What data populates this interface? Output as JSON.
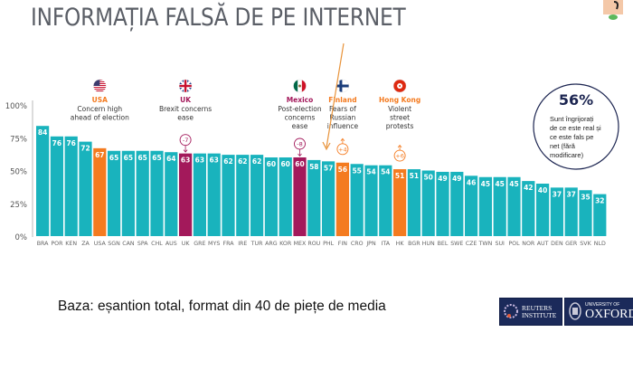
{
  "slide": {
    "title": "INFORMAȚIA FALSĂ DE PE INTERNET",
    "base_note": "Baza: eșantion total, format din 40 de piețe de media",
    "logos": {
      "reuters": {
        "line1": "REUTERS",
        "line2": "INSTITUTE"
      },
      "oxford": {
        "line1": "UNIVERSITY OF",
        "line2": "OXFORD"
      }
    }
  },
  "colors": {
    "bar_default": "#19b3bd",
    "bar_highlight_orange": "#f47b20",
    "bar_highlight_purple": "#a3195b",
    "axis_text": "#555555",
    "title_text": "#5a5e66",
    "pointer_arrow": "#e8933a"
  },
  "chart_data": {
    "type": "bar",
    "title": "",
    "xlabel": "",
    "ylabel": "",
    "ylim": [
      0,
      100
    ],
    "yticks": [
      "0%",
      "25%",
      "50%",
      "75%",
      "100%"
    ],
    "ytick_values": [
      0,
      25,
      50,
      75,
      100
    ],
    "grid": false,
    "categories": [
      "BRA",
      "POR",
      "KEN",
      "ZA",
      "USA",
      "SGN",
      "CAN",
      "SPA",
      "CHL",
      "AUS",
      "UK",
      "GRE",
      "MYS",
      "FRA",
      "IRE",
      "TUR",
      "ARG",
      "KOR",
      "MEX",
      "ROU",
      "PHL",
      "FIN",
      "CRO",
      "JPN",
      "ITA",
      "HK",
      "BGR",
      "HUN",
      "BEL",
      "SWE",
      "CZE",
      "TWN",
      "SUI",
      "POL",
      "NOR",
      "AUT",
      "DEN",
      "GER",
      "SVK",
      "NLD"
    ],
    "values": [
      84,
      76,
      76,
      72,
      67,
      65,
      65,
      65,
      65,
      64,
      63,
      63,
      63,
      62,
      62,
      62,
      60,
      60,
      60,
      58,
      57,
      56,
      55,
      54,
      54,
      51,
      51,
      50,
      49,
      49,
      46,
      45,
      45,
      45,
      42,
      40,
      37,
      37,
      35,
      32
    ],
    "highlights": {
      "USA": "orange",
      "UK": "purple",
      "MEX": "purple",
      "FIN": "orange",
      "HK": "orange"
    },
    "annotations": [
      {
        "category": "USA",
        "country": "USA",
        "note": [
          "Concern high",
          "ahead of election"
        ],
        "flag": "us-flag",
        "color": "orange",
        "change": null
      },
      {
        "category": "UK",
        "country": "UK",
        "note": [
          "Brexit concerns",
          "ease"
        ],
        "flag": "uk-flag",
        "color": "purple",
        "change": "-7",
        "direction": "down"
      },
      {
        "category": "MEX",
        "country": "Mexico",
        "note": [
          "Post-election",
          "concerns",
          "ease"
        ],
        "flag": "mexico-flag",
        "color": "purple",
        "change": "-8",
        "direction": "down"
      },
      {
        "category": "FIN",
        "country": "Finland",
        "note": [
          "Fears of",
          "Russian",
          "influence"
        ],
        "flag": "finland-flag",
        "color": "orange",
        "change": "+4",
        "direction": "up"
      },
      {
        "category": "HK",
        "country": "Hong Kong",
        "note": [
          "Violent",
          "street",
          "protests"
        ],
        "flag": "hongkong-flag",
        "color": "orange",
        "change": "+6",
        "direction": "up"
      }
    ],
    "callout": {
      "value": "56%",
      "text": [
        "Sunt îngrijorați",
        "de ce este real și",
        "ce este fals pe",
        "net (fără",
        "modificare)"
      ]
    }
  }
}
